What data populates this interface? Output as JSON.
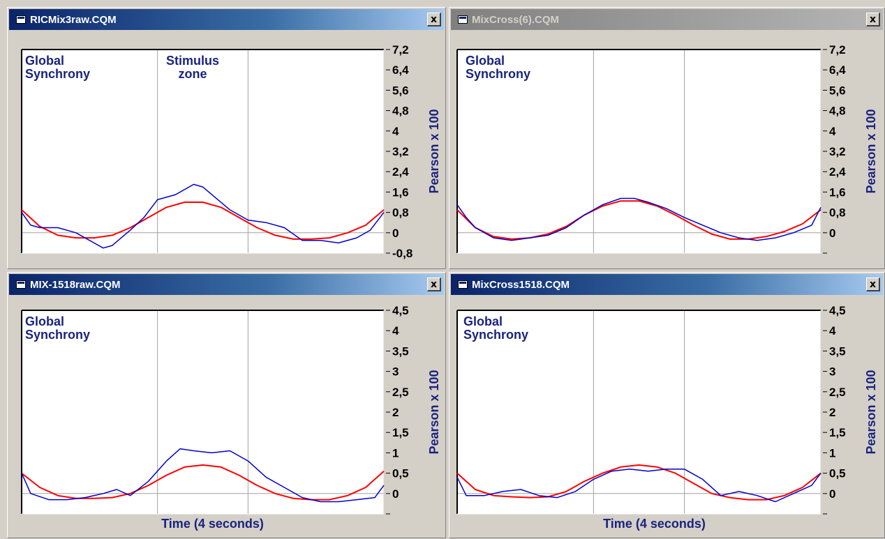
{
  "windows": [
    {
      "title": "RICMix3raw.CQM",
      "active": true,
      "close_label": "x",
      "annotations": [
        "Global\nSynchrony",
        "Stimulus\nzone"
      ],
      "ylabel": "Pearson x 100",
      "xlabel": "",
      "chart_data": {
        "type": "line",
        "xlim": [
          0,
          4
        ],
        "ylim": [
          -0.8,
          7.2
        ],
        "yticks": [
          "7,2",
          "6,4",
          "5,6",
          "4,8",
          "4",
          "3,2",
          "2,4",
          "1,6",
          "0,8",
          "0",
          "-0,8"
        ],
        "yticks_values": [
          7.2,
          6.4,
          5.6,
          4.8,
          4.0,
          3.2,
          2.4,
          1.6,
          0.8,
          0,
          -0.8
        ],
        "series": [
          {
            "color": "#ff0000",
            "x": [
              0,
              0.2,
              0.4,
              0.6,
              0.8,
              1.0,
              1.2,
              1.4,
              1.6,
              1.8,
              2.0,
              2.2,
              2.4,
              2.6,
              2.8,
              3.0,
              3.2,
              3.4,
              3.6,
              3.8,
              4.0
            ],
            "values": [
              0.9,
              0.25,
              -0.1,
              -0.2,
              -0.2,
              -0.1,
              0.2,
              0.6,
              1.0,
              1.2,
              1.2,
              1.0,
              0.6,
              0.2,
              -0.1,
              -0.25,
              -0.25,
              -0.2,
              0.0,
              0.3,
              0.9
            ]
          },
          {
            "color": "#0000cc",
            "x": [
              0,
              0.1,
              0.2,
              0.4,
              0.6,
              0.8,
              0.9,
              1.0,
              1.1,
              1.2,
              1.35,
              1.5,
              1.7,
              1.9,
              2.0,
              2.1,
              2.3,
              2.5,
              2.7,
              2.9,
              3.1,
              3.3,
              3.5,
              3.7,
              3.85,
              4.0
            ],
            "values": [
              0.8,
              0.3,
              0.2,
              0.2,
              0.0,
              -0.4,
              -0.6,
              -0.5,
              -0.2,
              0.1,
              0.6,
              1.3,
              1.5,
              1.9,
              1.8,
              1.5,
              0.9,
              0.5,
              0.4,
              0.2,
              -0.3,
              -0.3,
              -0.4,
              -0.2,
              0.1,
              0.8
            ]
          }
        ]
      }
    },
    {
      "title": "MixCross(6).CQM",
      "active": false,
      "close_label": "x",
      "annotations": [
        "Global\nSynchrony"
      ],
      "ylabel": "Pearson x 100",
      "xlabel": "",
      "chart_data": {
        "type": "line",
        "xlim": [
          0,
          4
        ],
        "ylim": [
          -0.8,
          7.2
        ],
        "yticks": [
          "7,2",
          "6,4",
          "5,6",
          "4,8",
          "4",
          "3,2",
          "2,4",
          "1,6",
          "0,8",
          "0",
          ""
        ],
        "yticks_values": [
          7.2,
          6.4,
          5.6,
          4.8,
          4.0,
          3.2,
          2.4,
          1.6,
          0.8,
          0,
          -0.8
        ],
        "series": [
          {
            "color": "#ff0000",
            "x": [
              0,
              0.2,
              0.4,
              0.6,
              0.8,
              1.0,
              1.2,
              1.4,
              1.6,
              1.8,
              2.0,
              2.2,
              2.4,
              2.6,
              2.8,
              3.0,
              3.2,
              3.4,
              3.6,
              3.8,
              4.0
            ],
            "values": [
              0.9,
              0.2,
              -0.15,
              -0.25,
              -0.2,
              -0.05,
              0.25,
              0.7,
              1.05,
              1.25,
              1.25,
              1.05,
              0.7,
              0.3,
              -0.05,
              -0.25,
              -0.25,
              -0.15,
              0.05,
              0.35,
              0.9
            ]
          },
          {
            "color": "#0000cc",
            "x": [
              0,
              0.1,
              0.2,
              0.4,
              0.6,
              0.8,
              1.0,
              1.2,
              1.4,
              1.6,
              1.8,
              1.95,
              2.1,
              2.3,
              2.5,
              2.7,
              2.9,
              3.1,
              3.3,
              3.5,
              3.7,
              3.9,
              4.0
            ],
            "values": [
              1.1,
              0.6,
              0.2,
              -0.2,
              -0.3,
              -0.2,
              -0.1,
              0.2,
              0.7,
              1.1,
              1.35,
              1.35,
              1.2,
              0.95,
              0.6,
              0.3,
              0.0,
              -0.2,
              -0.3,
              -0.2,
              0.0,
              0.3,
              1.0
            ]
          }
        ]
      }
    },
    {
      "title": "MIX-1518raw.CQM",
      "active": true,
      "close_label": "x",
      "annotations": [
        "Global\nSynchrony"
      ],
      "ylabel": "Pearson x 100",
      "xlabel": "Time (4 seconds)",
      "chart_data": {
        "type": "line",
        "xlim": [
          0,
          4
        ],
        "ylim": [
          -0.5,
          4.5
        ],
        "yticks": [
          "4,5",
          "4",
          "3,5",
          "3",
          "2,5",
          "2",
          "1,5",
          "1",
          "0,5",
          "0",
          ""
        ],
        "yticks_values": [
          4.5,
          4.0,
          3.5,
          3.0,
          2.5,
          2.0,
          1.5,
          1.0,
          0.5,
          0,
          -0.5
        ],
        "series": [
          {
            "color": "#ff0000",
            "x": [
              0,
              0.2,
              0.4,
              0.6,
              0.8,
              1.0,
              1.2,
              1.4,
              1.6,
              1.8,
              2.0,
              2.2,
              2.4,
              2.6,
              2.8,
              3.0,
              3.2,
              3.4,
              3.6,
              3.8,
              4.0
            ],
            "values": [
              0.5,
              0.15,
              -0.05,
              -0.12,
              -0.12,
              -0.1,
              0.0,
              0.2,
              0.45,
              0.65,
              0.7,
              0.65,
              0.45,
              0.2,
              0.0,
              -0.12,
              -0.15,
              -0.15,
              -0.05,
              0.15,
              0.55
            ]
          },
          {
            "color": "#0000cc",
            "x": [
              0,
              0.1,
              0.3,
              0.5,
              0.7,
              0.9,
              1.05,
              1.2,
              1.4,
              1.6,
              1.75,
              1.9,
              2.1,
              2.3,
              2.5,
              2.7,
              2.9,
              3.1,
              3.3,
              3.5,
              3.7,
              3.9,
              4.0
            ],
            "values": [
              0.5,
              0.0,
              -0.15,
              -0.15,
              -0.1,
              0.0,
              0.1,
              -0.05,
              0.3,
              0.8,
              1.1,
              1.05,
              1.0,
              1.05,
              0.8,
              0.4,
              0.15,
              -0.1,
              -0.2,
              -0.2,
              -0.15,
              -0.1,
              0.2
            ]
          }
        ]
      }
    },
    {
      "title": "MixCross1518.CQM",
      "active": true,
      "close_label": "x",
      "annotations": [
        "Global\nSynchrony"
      ],
      "ylabel": "Pearson x 100",
      "xlabel": "Time (4 seconds)",
      "chart_data": {
        "type": "line",
        "xlim": [
          0,
          4
        ],
        "ylim": [
          -0.5,
          4.5
        ],
        "yticks": [
          "4,5",
          "4",
          "3,5",
          "3",
          "2,5",
          "2",
          "1,5",
          "1",
          "0,5",
          "0",
          ""
        ],
        "yticks_values": [
          4.5,
          4.0,
          3.5,
          3.0,
          2.5,
          2.0,
          1.5,
          1.0,
          0.5,
          0,
          -0.5
        ],
        "series": [
          {
            "color": "#ff0000",
            "x": [
              0,
              0.2,
              0.4,
              0.6,
              0.8,
              1.0,
              1.2,
              1.4,
              1.6,
              1.8,
              2.0,
              2.2,
              2.4,
              2.6,
              2.8,
              3.0,
              3.2,
              3.4,
              3.6,
              3.8,
              4.0
            ],
            "values": [
              0.5,
              0.1,
              -0.05,
              -0.08,
              -0.1,
              -0.08,
              0.05,
              0.3,
              0.5,
              0.65,
              0.7,
              0.65,
              0.5,
              0.25,
              0.0,
              -0.1,
              -0.15,
              -0.15,
              -0.05,
              0.15,
              0.5
            ]
          },
          {
            "color": "#0000cc",
            "x": [
              0,
              0.1,
              0.3,
              0.5,
              0.7,
              0.9,
              1.1,
              1.3,
              1.5,
              1.7,
              1.9,
              2.1,
              2.3,
              2.5,
              2.7,
              2.9,
              3.1,
              3.3,
              3.5,
              3.7,
              3.9,
              4.0
            ],
            "values": [
              0.4,
              -0.05,
              -0.05,
              0.05,
              0.1,
              -0.05,
              -0.1,
              0.05,
              0.35,
              0.55,
              0.6,
              0.55,
              0.6,
              0.6,
              0.35,
              -0.05,
              0.05,
              -0.05,
              -0.2,
              0.0,
              0.2,
              0.5
            ]
          }
        ]
      }
    }
  ]
}
